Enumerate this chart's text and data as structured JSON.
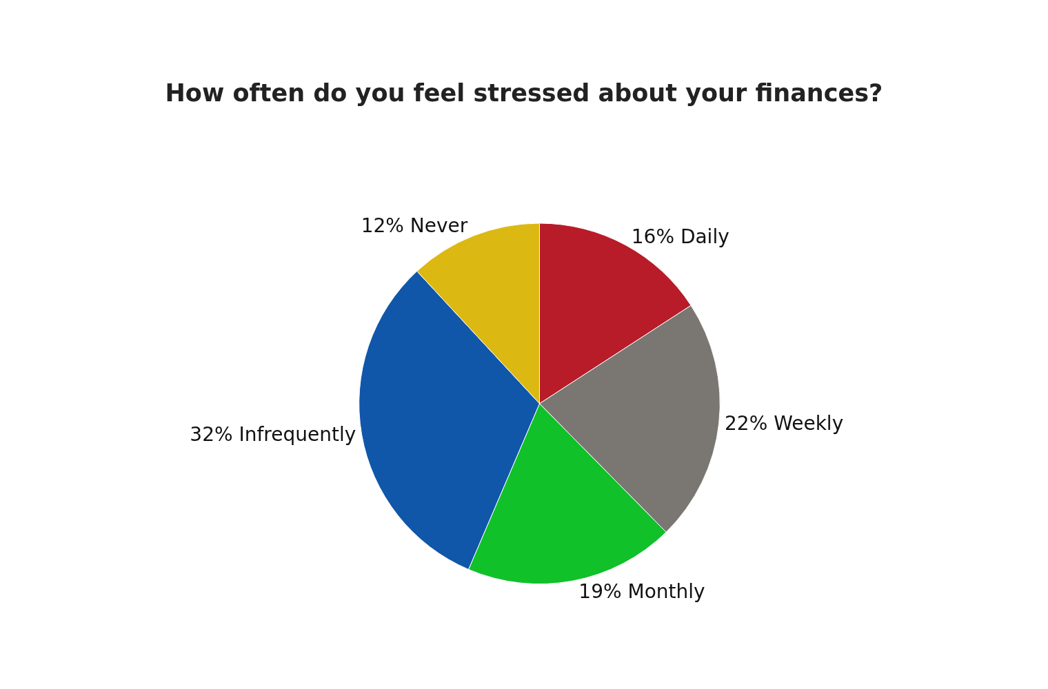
{
  "chart_data": {
    "type": "pie",
    "title": "How often do you feel stressed about your finances?",
    "categories": [
      "Daily",
      "Weekly",
      "Monthly",
      "Infrequently",
      "Never"
    ],
    "values": [
      16,
      22,
      19,
      32,
      12
    ],
    "value_labels": [
      "16%",
      "22%",
      "19%",
      "32%",
      "12%"
    ],
    "colors": [
      "#b71c28",
      "#7a7672",
      "#10c12a",
      "#1057a9",
      "#dcb813"
    ]
  }
}
